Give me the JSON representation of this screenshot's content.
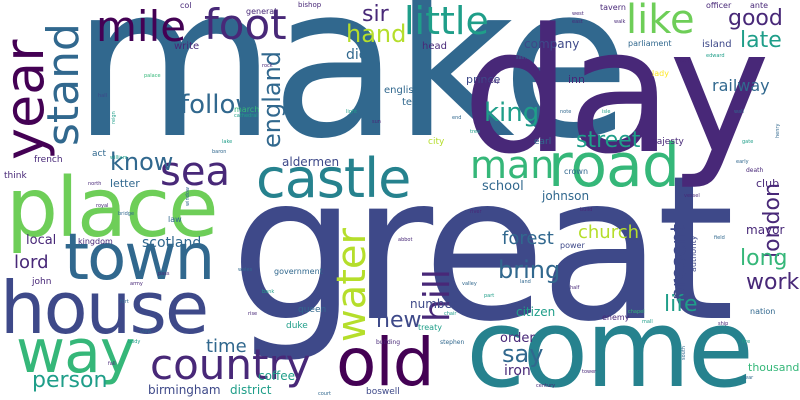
{
  "colors": {
    "background": "#ffffff",
    "dark_purple": "#440154",
    "indigo": "#482878",
    "slate_blue": "#3e4989",
    "steel_blue": "#31688e",
    "teal_blue": "#26828e",
    "teal": "#1f9e89",
    "green": "#35b779",
    "lime": "#6ece58",
    "yellow_green": "#b5de2b",
    "yellow": "#fde725"
  },
  "words": {
    "make": "make",
    "great": "great",
    "day": "day",
    "come": "come",
    "place": "place",
    "house": "house",
    "town": "town",
    "way": "way",
    "road": "road",
    "castle": "castle",
    "year": "year",
    "old": "old",
    "country": "country",
    "mile": "mile",
    "foot": "foot",
    "little": "little",
    "like": "like",
    "sea": "sea",
    "man": "man",
    "stand": "stand",
    "water": "water",
    "hill": "hill",
    "england": "england",
    "follow": "follow",
    "good": "good",
    "late": "late",
    "king": "king",
    "street": "street",
    "know": "know",
    "hand": "hand",
    "sir": "sir",
    "bring": "bring",
    "say": "say",
    "church": "church",
    "london": "london",
    "long": "long",
    "work": "work",
    "life": "life",
    "present": "present",
    "new": "new",
    "person": "person",
    "time": "time",
    "lord": "lord",
    "forest": "forest",
    "scotland": "scotland",
    "birmingham": "birmingham",
    "district": "district",
    "railway": "railway",
    "company": "company",
    "die": "die",
    "iron": "iron",
    "order": "order",
    "citizen": "citizen",
    "coffee": "coffee",
    "local": "local",
    "school": "school",
    "number": "number",
    "johnson": "johnson",
    "mayor": "mayor",
    "aldermen": "aldermen",
    "letter": "letter",
    "club": "club",
    "thousand": "thousand",
    "inn": "inn",
    "prince": "prince",
    "tell": "tell",
    "english": "english",
    "head": "head",
    "island": "island",
    "write": "write",
    "col": "col",
    "general": "general",
    "bishop": "bishop",
    "tavern": "tavern",
    "officer": "officer",
    "ante": "ante",
    "parliament": "parliament",
    "majesty": "majesty",
    "earl": "earl",
    "crown": "crown",
    "city": "city",
    "french": "french",
    "think": "think",
    "act": "act",
    "john": "john",
    "kingdom": "kingdom",
    "government": "government",
    "queen": "queen",
    "duke": "duke",
    "treaty": "treaty",
    "boswell": "boswell",
    "power": "power",
    "authority": "authority",
    "enemy": "enemy",
    "lady": "lady",
    "march": "march",
    "nation": "nation",
    "death": "death",
    "law": "law",
    "stephen": "stephen",
    "building": "building",
    "century": "century",
    "reign": "reign",
    "abbot": "abbot",
    "south": "south",
    "war": "war",
    "henry": "henry",
    "land": "land",
    "chapel": "chapel",
    "mall": "mall",
    "build": "build",
    "tower": "tower",
    "east": "east",
    "west": "west",
    "abbey": "abbey",
    "cathedral": "cathedral",
    "baron": "baron",
    "william": "william",
    "north": "north",
    "window": "window",
    "hall": "hall",
    "palace": "palace",
    "wales": "wales",
    "vessel": "vessel",
    "early": "early",
    "pass": "pass",
    "chair": "chair",
    "royal": "royal",
    "bridge": "bridge",
    "lake": "lake",
    "rock": "rock",
    "note": "note",
    "isle": "isle",
    "walk": "walk",
    "saint": "saint",
    "edward": "edward",
    "room": "room",
    "wall": "wall",
    "gate": "gate",
    "field": "field",
    "ship": "ship",
    "fire": "fire",
    "army": "army",
    "fort": "fort",
    "bank": "bank",
    "rise": "rise",
    "view": "view",
    "body": "body",
    "fall": "fall",
    "court": "court",
    "light": "light",
    "sun": "sun",
    "end": "end",
    "tree": "tree",
    "river": "river",
    "valley": "valley",
    "part": "part",
    "half": "half"
  }
}
